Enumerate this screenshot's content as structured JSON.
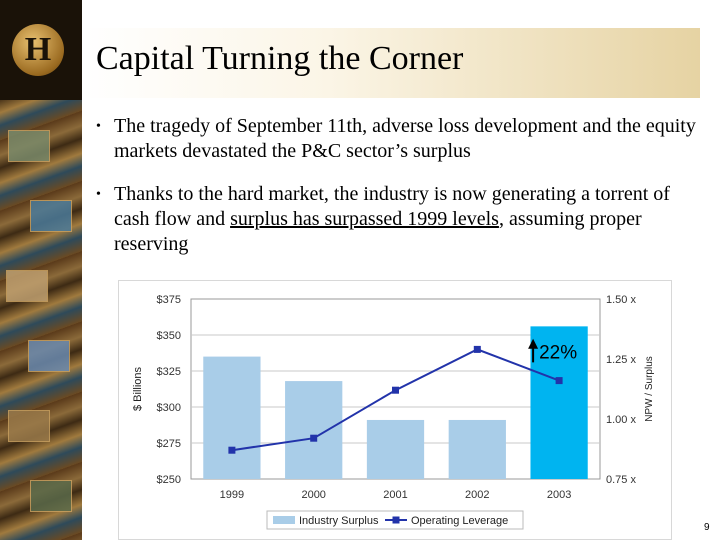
{
  "slide": {
    "title": "Capital Turning the Corner",
    "bullets": [
      {
        "text": "The tragedy of September 11th, adverse loss development and the equity markets devastated the P&C sector’s surplus"
      },
      {
        "pre": "Thanks to the hard market, the industry is now generating a torrent of cash flow and ",
        "underlined": "surplus has surpassed 1999 levels",
        "post": ", assuming proper reserving"
      }
    ],
    "page_number": "9",
    "logo_letter": "H"
  },
  "chart_data": {
    "type": "bar",
    "categories": [
      "1999",
      "2000",
      "2001",
      "2002",
      "2003"
    ],
    "series": [
      {
        "name": "Industry Surplus",
        "type": "bar",
        "axis": "left",
        "values": [
          335,
          318,
          291,
          291,
          356
        ],
        "colors": [
          "#a9cde8",
          "#a9cde8",
          "#a9cde8",
          "#a9cde8",
          "#00b4f0"
        ]
      },
      {
        "name": "Operating Leverage",
        "type": "line",
        "axis": "right",
        "values": [
          0.87,
          0.92,
          1.12,
          1.29,
          1.16
        ],
        "color": "#2233aa"
      }
    ],
    "ylabel": "$ Billions",
    "y2label": "NPW / Surplus",
    "ylim": [
      250,
      375
    ],
    "y2lim": [
      0.75,
      1.5
    ],
    "yticks": [
      "$250",
      "$275",
      "$300",
      "$325",
      "$350",
      "$375"
    ],
    "y2ticks": [
      "0.75 x",
      "1.00 x",
      "1.25 x",
      "1.50 x"
    ],
    "annotation": "22%",
    "grid": true,
    "legend_position": "bottom"
  }
}
